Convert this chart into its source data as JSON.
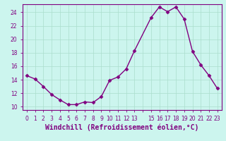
{
  "x": [
    0,
    1,
    2,
    3,
    4,
    5,
    6,
    7,
    8,
    9,
    10,
    11,
    12,
    13,
    15,
    16,
    17,
    18,
    19,
    20,
    21,
    22,
    23
  ],
  "y": [
    14.6,
    14.1,
    13.0,
    11.8,
    11.0,
    10.3,
    10.3,
    10.7,
    10.6,
    11.5,
    13.9,
    14.4,
    15.6,
    18.3,
    23.2,
    24.8,
    24.1,
    24.8,
    23.0,
    18.2,
    16.2,
    14.6,
    12.7
  ],
  "line_color": "#800080",
  "marker": "D",
  "markersize": 2.5,
  "linewidth": 1.0,
  "background_color": "#ccf5ee",
  "grid_color": "#aaddcc",
  "xlabel": "Windchill (Refroidissement éolien,°C)",
  "xlabel_fontsize": 7,
  "xlim": [
    -0.5,
    23.5
  ],
  "ylim": [
    9.5,
    25.2
  ],
  "yticks": [
    10,
    12,
    14,
    16,
    18,
    20,
    22,
    24
  ],
  "xtick_positions": [
    0,
    1,
    2,
    3,
    4,
    5,
    6,
    7,
    8,
    9,
    10,
    11,
    12,
    13,
    14,
    15,
    16,
    17,
    18,
    19,
    20,
    21,
    22,
    23
  ],
  "xtick_labels": [
    "0",
    "1",
    "2",
    "3",
    "4",
    "5",
    "6",
    "7",
    "8",
    "9",
    "10",
    "11",
    "12",
    "13",
    "",
    "15",
    "16",
    "17",
    "18",
    "19",
    "20",
    "21",
    "22",
    "23"
  ],
  "tick_fontsize": 5.5,
  "tick_color": "#800080",
  "spine_color": "#800080"
}
